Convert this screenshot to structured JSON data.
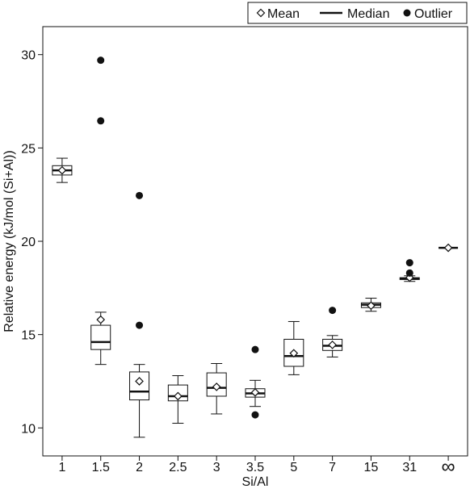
{
  "chart_data": {
    "type": "box",
    "xlabel": "Si/Al",
    "ylabel": "Relative energy (kJ/mol (Si+Al))",
    "ylim": [
      8.5,
      31.5
    ],
    "yticks": [
      10,
      15,
      20,
      25,
      30
    ],
    "categories": [
      "1",
      "1.5",
      "2",
      "2.5",
      "3",
      "3.5",
      "5",
      "7",
      "15",
      "31",
      "∞"
    ],
    "legend": {
      "position": "top-right",
      "items": [
        {
          "label": "Mean",
          "marker": "diamond"
        },
        {
          "label": "Median",
          "marker": "line"
        },
        {
          "label": "Outlier",
          "marker": "dot"
        }
      ]
    },
    "boxes": [
      {
        "category": "1",
        "whisker_low": 23.15,
        "q1": 23.55,
        "median": 23.8,
        "q3": 24.05,
        "whisker_high": 24.45,
        "mean": 23.8,
        "outliers": []
      },
      {
        "category": "1.5",
        "whisker_low": 13.4,
        "q1": 14.2,
        "median": 14.6,
        "q3": 15.5,
        "whisker_high": 16.2,
        "mean": 15.8,
        "outliers": [
          26.45,
          29.7
        ]
      },
      {
        "category": "2",
        "whisker_low": 9.5,
        "q1": 11.5,
        "median": 11.95,
        "q3": 13.0,
        "whisker_high": 13.4,
        "mean": 12.5,
        "outliers": [
          15.5,
          22.45
        ]
      },
      {
        "category": "2.5",
        "whisker_low": 10.25,
        "q1": 11.45,
        "median": 11.7,
        "q3": 12.3,
        "whisker_high": 12.8,
        "mean": 11.7,
        "outliers": []
      },
      {
        "category": "3",
        "whisker_low": 10.75,
        "q1": 11.7,
        "median": 12.15,
        "q3": 12.95,
        "whisker_high": 13.45,
        "mean": 12.2,
        "outliers": []
      },
      {
        "category": "3.5",
        "whisker_low": 11.15,
        "q1": 11.65,
        "median": 11.85,
        "q3": 12.1,
        "whisker_high": 12.55,
        "mean": 11.9,
        "outliers": [
          10.7,
          14.2
        ]
      },
      {
        "category": "5",
        "whisker_low": 12.85,
        "q1": 13.3,
        "median": 13.85,
        "q3": 14.75,
        "whisker_high": 15.7,
        "mean": 14.0,
        "outliers": []
      },
      {
        "category": "7",
        "whisker_low": 13.8,
        "q1": 14.15,
        "median": 14.4,
        "q3": 14.75,
        "whisker_high": 14.95,
        "mean": 14.45,
        "outliers": [
          16.3
        ]
      },
      {
        "category": "15",
        "whisker_low": 16.25,
        "q1": 16.45,
        "median": 16.6,
        "q3": 16.7,
        "whisker_high": 16.95,
        "mean": 16.55,
        "outliers": []
      },
      {
        "category": "31",
        "whisker_low": 17.85,
        "q1": 17.95,
        "median": 18.0,
        "q3": 18.05,
        "whisker_high": 18.15,
        "mean": 18.05,
        "outliers": [
          18.3,
          18.85
        ]
      },
      {
        "category": "∞",
        "whisker_low": 19.65,
        "q1": 19.65,
        "median": 19.65,
        "q3": 19.65,
        "whisker_high": 19.65,
        "mean": 19.65,
        "outliers": []
      }
    ],
    "grid": false
  }
}
